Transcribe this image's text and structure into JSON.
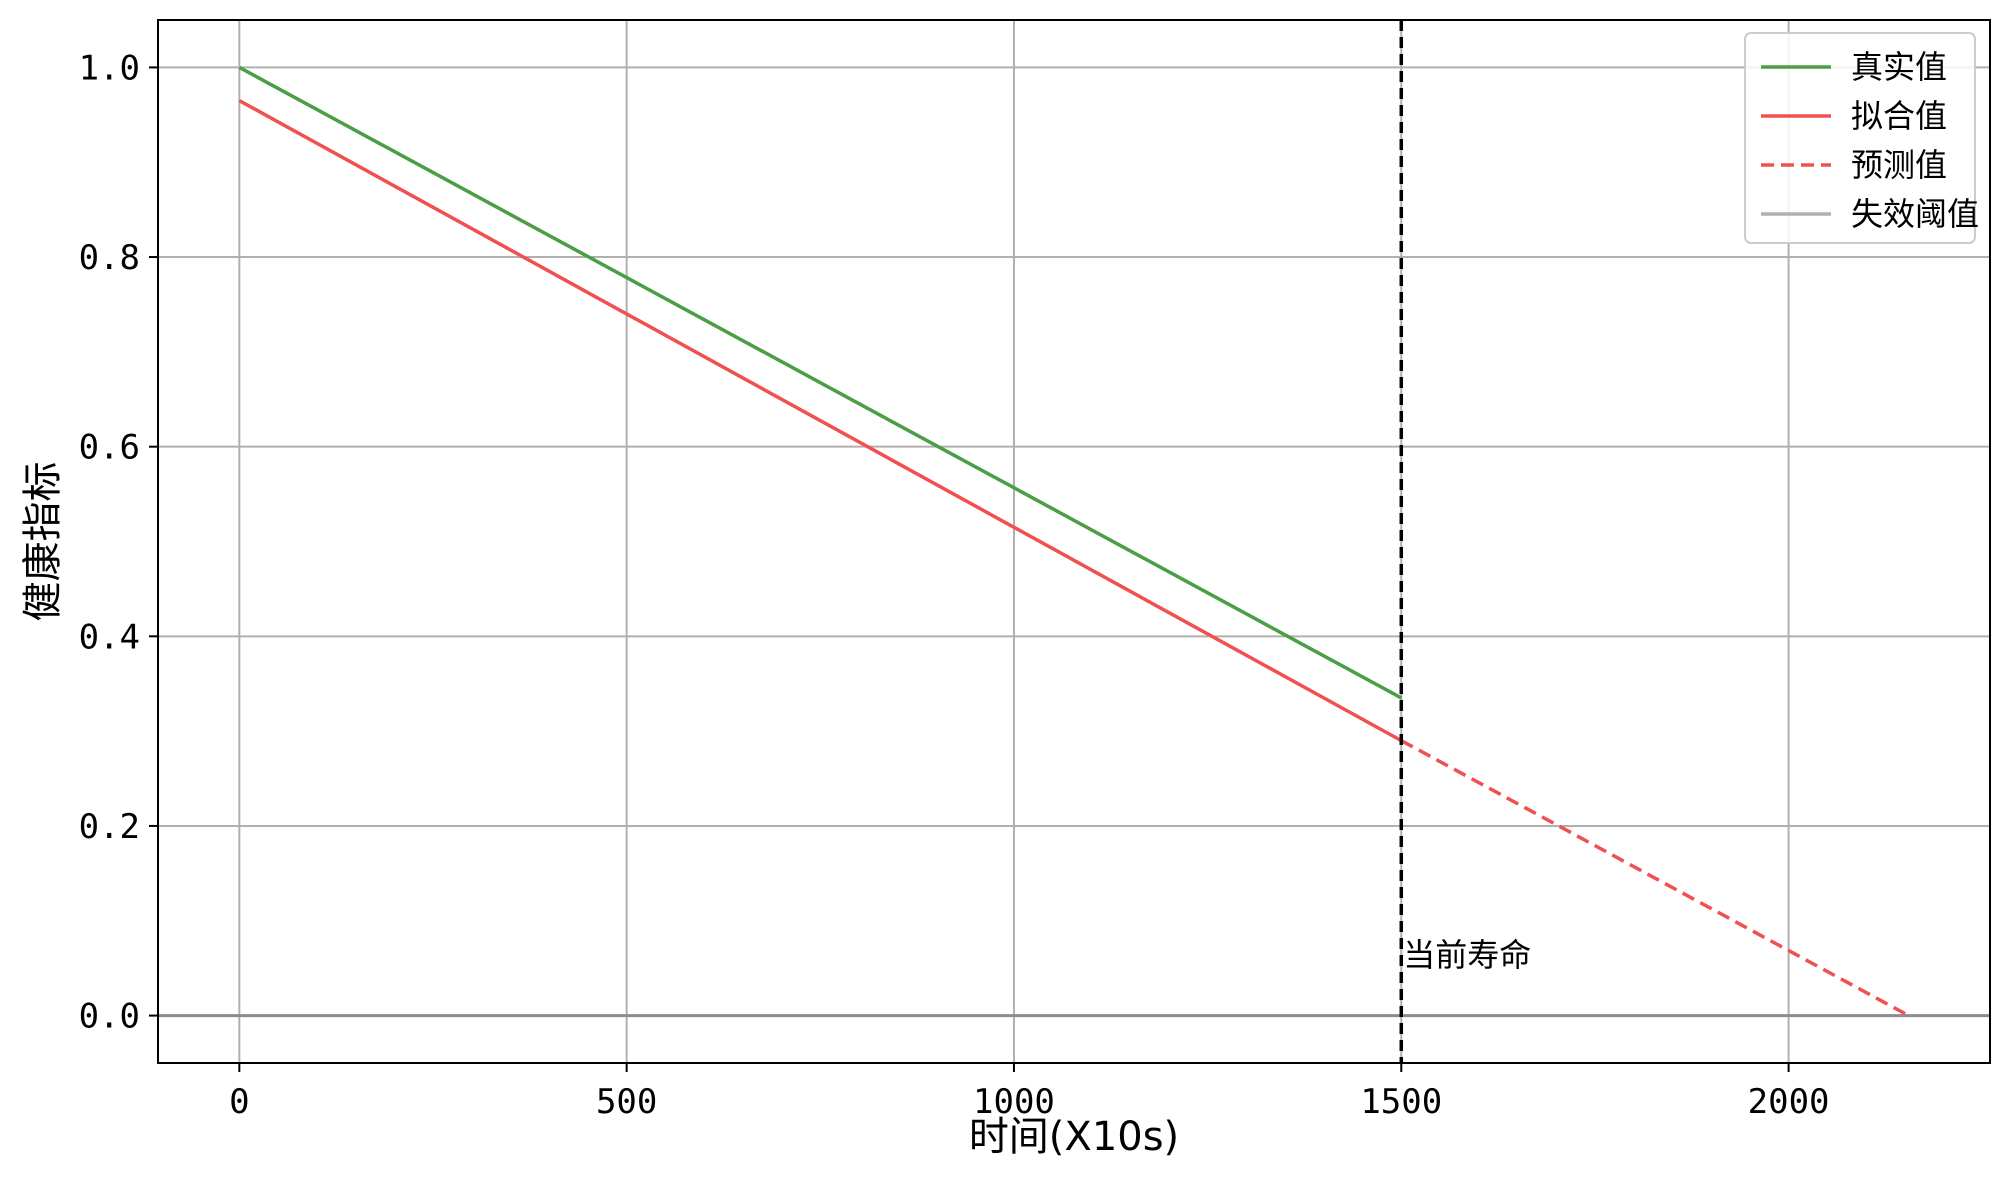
{
  "chart_data": {
    "type": "line",
    "title": "",
    "xlabel": "时间(X10s)",
    "ylabel": "健康指标",
    "xlim": [
      -105,
      2260
    ],
    "ylim": [
      -0.05,
      1.05
    ],
    "xticks": [
      0,
      500,
      1000,
      1500,
      2000
    ],
    "yticks": [
      0.0,
      0.2,
      0.4,
      0.6,
      0.8,
      1.0
    ],
    "xtick_labels": [
      "0",
      "500",
      "1000",
      "1500",
      "2000"
    ],
    "ytick_labels": [
      "0.0",
      "0.2",
      "0.4",
      "0.6",
      "0.8",
      "1.0"
    ],
    "grid": true,
    "legend_position": "top-right",
    "series": [
      {
        "name": "真实值",
        "color": "#4a9e45",
        "style": "solid",
        "x": [
          0,
          1500
        ],
        "y": [
          1.0,
          0.335
        ]
      },
      {
        "name": "拟合值",
        "color": "#f0504f",
        "style": "solid",
        "x": [
          0,
          1500
        ],
        "y": [
          0.965,
          0.29
        ]
      },
      {
        "name": "预测值",
        "color": "#f0504f",
        "style": "dashed",
        "x": [
          1500,
          2155
        ],
        "y": [
          0.29,
          0.0
        ]
      },
      {
        "name": "失效阈值",
        "color": "#b0b0b0",
        "style": "solid",
        "x": [
          -105,
          2260
        ],
        "y": [
          0.0,
          0.0
        ]
      }
    ],
    "vertical_line": {
      "x": 1500,
      "color": "#000000",
      "style": "dashed"
    },
    "annotations": [
      {
        "text": "当前寿命",
        "x": 1500,
        "y": 0.065
      }
    ]
  }
}
